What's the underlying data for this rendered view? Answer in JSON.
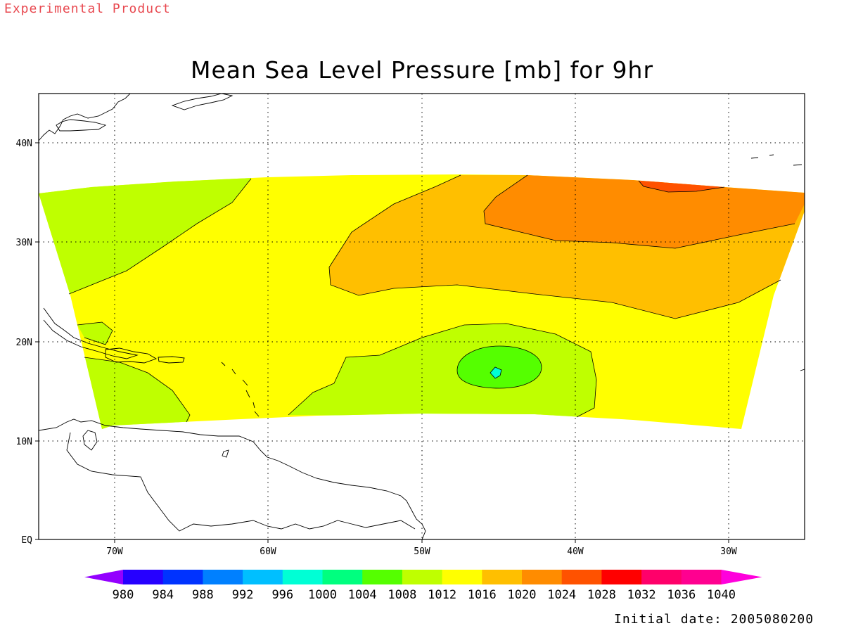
{
  "header": {
    "product_label": "Experimental Product",
    "title": "Mean Sea Level Pressure [mb] for 9hr",
    "initial_date": "Initial date: 2005080200"
  },
  "map": {
    "projection": "latitude-longitude",
    "lon_range": [
      "75W",
      "25W"
    ],
    "lat_range": [
      "EQ",
      "45N"
    ],
    "grid": "dotted",
    "lat_labels": [
      "40N",
      "30N",
      "20N",
      "10N",
      "EQ"
    ],
    "lon_labels": [
      "70W",
      "60W",
      "50W",
      "40W",
      "30W"
    ],
    "features": [
      "North America coastline",
      "Caribbean islands",
      "South America coastline"
    ],
    "pressure_regions": [
      {
        "range_mb": "1008-1012",
        "area": "western Atlantic north of Caribbean"
      },
      {
        "range_mb": "1012-1016",
        "area": "central band"
      },
      {
        "range_mb": "1016-1020",
        "area": "north-central to east"
      },
      {
        "range_mb": "1020-1024",
        "area": "northeast"
      },
      {
        "range_mb": "1024-1028",
        "area": "small area near 35N 35W"
      },
      {
        "range_mb": "1004-1008",
        "area": "low centered near 17N 45W"
      },
      {
        "range_mb": "1000-1004",
        "area": "core of low near 17N 45W"
      }
    ]
  },
  "colorbar": {
    "labels": [
      "980",
      "984",
      "988",
      "992",
      "996",
      "1000",
      "1004",
      "1008",
      "1012",
      "1016",
      "1020",
      "1024",
      "1028",
      "1032",
      "1036",
      "1040"
    ],
    "colors": [
      "#9400ff",
      "#2600ff",
      "#0033ff",
      "#0080ff",
      "#00bfff",
      "#00ffd5",
      "#00ff7f",
      "#55ff00",
      "#bfff00",
      "#ffff00",
      "#ffbf00",
      "#ff8c00",
      "#ff5200",
      "#ff0000",
      "#ff006a",
      "#ff0090",
      "#ff00dc"
    ]
  },
  "palette": {
    "c1000": "#00ffd5",
    "c1004": "#55ff00",
    "c1008": "#bfff00",
    "c1012": "#ffff00",
    "c1016": "#ffbf00",
    "c1020": "#ff8c00",
    "c1024": "#ff5200"
  }
}
